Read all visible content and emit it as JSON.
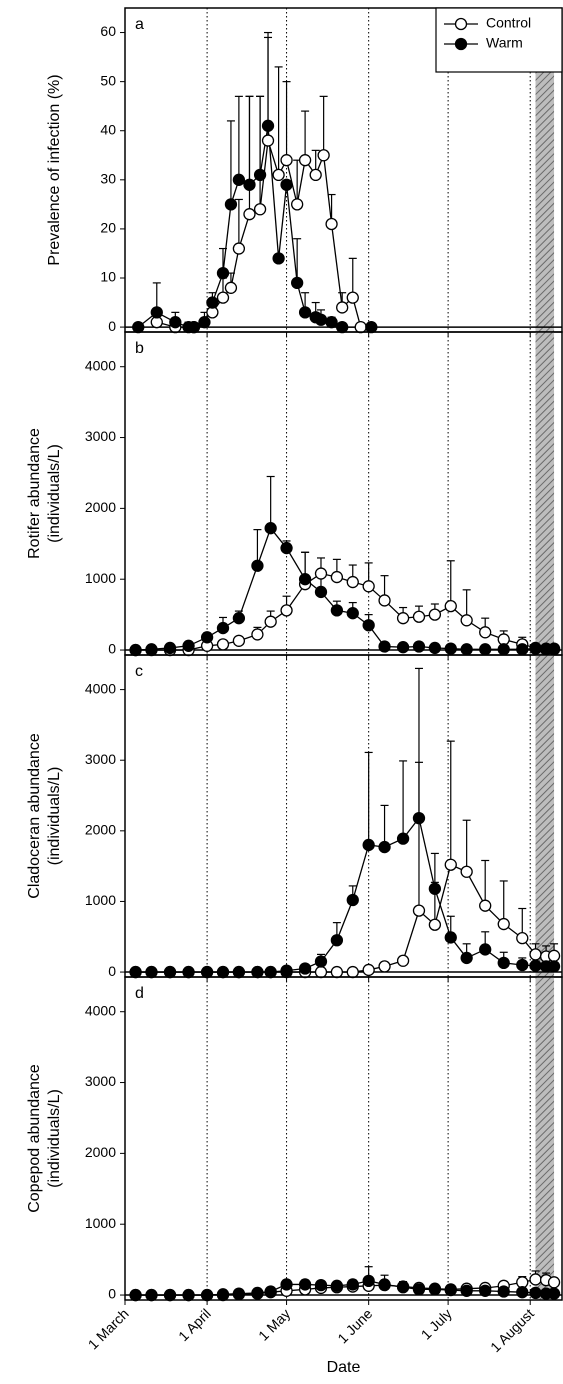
{
  "chart_data": [
    {
      "type": "line",
      "label": "a",
      "ylabel": [
        "Prevalence of infection (%)"
      ],
      "xlim": [
        0,
        165
      ],
      "xticks": [
        0,
        31,
        61,
        92,
        122,
        153
      ],
      "grid_x": "dotted",
      "ylim": [
        -1,
        65
      ],
      "yticks": [
        0,
        10,
        20,
        30,
        40,
        50,
        60
      ],
      "shade": [
        155,
        162
      ],
      "legend": "upper right",
      "series": [
        {
          "name": "Control",
          "color": "#000000",
          "marker_fill": "#ffffff",
          "x": [
            12,
            19,
            26,
            33,
            37,
            40,
            43,
            47,
            51,
            54,
            58,
            61,
            65,
            68,
            72,
            75,
            78,
            82,
            86,
            89
          ],
          "values": [
            1,
            0,
            0,
            3,
            6,
            8,
            16,
            23,
            24,
            38,
            31,
            34,
            25,
            34,
            31,
            35,
            21,
            4,
            6,
            0
          ],
          "errors": [
            0,
            0,
            0,
            2,
            4,
            3,
            10,
            24,
            23,
            21,
            22,
            16,
            9,
            10,
            5,
            12,
            6,
            3,
            8,
            0
          ]
        },
        {
          "name": "Warm",
          "color": "#000000",
          "marker_fill": "#000000",
          "x": [
            5,
            12,
            19,
            24,
            26,
            30,
            33,
            37,
            40,
            43,
            47,
            51,
            54,
            58,
            61,
            65,
            68,
            72,
            74,
            78,
            82,
            93
          ],
          "values": [
            0,
            3,
            1,
            0,
            0,
            1,
            5,
            11,
            25,
            30,
            29,
            31,
            41,
            14,
            29,
            9,
            3,
            2,
            1.5,
            1,
            0,
            0
          ],
          "errors": [
            0,
            6,
            2,
            1,
            0,
            2,
            2,
            5,
            17,
            17,
            18,
            16,
            19,
            0,
            0,
            9,
            4,
            3,
            2,
            1,
            0,
            0
          ]
        }
      ]
    },
    {
      "type": "line",
      "label": "b",
      "ylabel": [
        "Rotifer abundance",
        "(individuals/L)"
      ],
      "x": [
        4,
        10,
        17,
        24,
        31,
        37,
        43,
        50,
        55,
        61,
        68,
        74,
        80,
        86,
        92,
        98,
        105,
        111,
        117,
        123,
        129,
        136,
        143,
        150,
        155,
        159,
        162
      ],
      "xlim": [
        0,
        165
      ],
      "xticks": [
        0,
        31,
        61,
        92,
        122,
        153
      ],
      "grid_x": "dotted",
      "ylim": [
        -70,
        4490
      ],
      "yticks": [
        0,
        1000,
        2000,
        3000,
        4000
      ],
      "shade": [
        155,
        162
      ],
      "series": [
        {
          "color": "#000000",
          "marker_fill": "#ffffff",
          "values": [
            0,
            0,
            0,
            0,
            60,
            80,
            130,
            220,
            400,
            560,
            930,
            1080,
            1030,
            960,
            900,
            700,
            450,
            470,
            500,
            620,
            420,
            250,
            150,
            80,
            30,
            20,
            20
          ],
          "errors": [
            0,
            0,
            0,
            0,
            20,
            40,
            60,
            100,
            150,
            200,
            450,
            220,
            250,
            240,
            330,
            350,
            150,
            150,
            150,
            640,
            430,
            200,
            120,
            100,
            40,
            30,
            20
          ]
        },
        {
          "color": "#000000",
          "marker_fill": "#000000",
          "values": [
            0,
            10,
            30,
            60,
            180,
            310,
            450,
            1190,
            1720,
            1440,
            1000,
            820,
            560,
            520,
            350,
            50,
            40,
            50,
            30,
            20,
            10,
            10,
            10,
            10,
            20,
            10,
            10
          ],
          "errors": [
            0,
            10,
            20,
            30,
            60,
            150,
            100,
            510,
            730,
            100,
            380,
            250,
            130,
            150,
            150,
            30,
            20,
            20,
            10,
            10,
            10,
            10,
            10,
            10,
            10,
            10,
            10
          ]
        }
      ]
    },
    {
      "type": "line",
      "label": "c",
      "ylabel": [
        "Cladoceran abundance",
        "(individuals/L)"
      ],
      "x": [
        4,
        10,
        17,
        24,
        31,
        37,
        43,
        50,
        55,
        61,
        68,
        74,
        80,
        86,
        92,
        98,
        105,
        111,
        117,
        123,
        129,
        136,
        143,
        150,
        155,
        159,
        162
      ],
      "xlim": [
        0,
        165
      ],
      "xticks": [
        0,
        31,
        61,
        92,
        122,
        153
      ],
      "grid_x": "dotted",
      "ylim": [
        -70,
        4490
      ],
      "yticks": [
        0,
        1000,
        2000,
        3000,
        4000
      ],
      "shade": [
        155,
        162
      ],
      "series": [
        {
          "color": "#000000",
          "marker_fill": "#ffffff",
          "values": [
            0,
            0,
            0,
            0,
            0,
            0,
            0,
            0,
            0,
            0,
            0,
            0,
            0,
            0,
            30,
            80,
            160,
            870,
            670,
            1520,
            1420,
            940,
            680,
            480,
            250,
            220,
            230
          ],
          "errors": [
            0,
            0,
            0,
            0,
            0,
            0,
            0,
            0,
            0,
            0,
            0,
            0,
            0,
            0,
            20,
            40,
            60,
            2100,
            600,
            1750,
            730,
            640,
            610,
            420,
            150,
            150,
            170
          ]
        },
        {
          "color": "#000000",
          "marker_fill": "#000000",
          "values": [
            0,
            0,
            0,
            0,
            0,
            0,
            0,
            0,
            0,
            20,
            50,
            150,
            450,
            1020,
            1800,
            1770,
            1890,
            2180,
            1180,
            490,
            200,
            320,
            130,
            100,
            90,
            80,
            80
          ],
          "errors": [
            0,
            0,
            0,
            0,
            0,
            0,
            0,
            0,
            0,
            20,
            40,
            100,
            250,
            200,
            1310,
            590,
            1100,
            2120,
            500,
            300,
            200,
            250,
            150,
            100,
            60,
            50,
            50
          ]
        }
      ]
    },
    {
      "type": "line",
      "label": "d",
      "ylabel": [
        "Copepod abundance",
        "(individuals/L)"
      ],
      "xlabel": "Date",
      "x": [
        4,
        10,
        17,
        24,
        31,
        37,
        43,
        50,
        55,
        61,
        68,
        74,
        80,
        86,
        92,
        98,
        105,
        111,
        117,
        123,
        129,
        136,
        143,
        150,
        155,
        159,
        162
      ],
      "xlim": [
        0,
        165
      ],
      "xticks": [
        {
          "value": 0,
          "label": "1 March"
        },
        {
          "value": 31,
          "label": "1 April"
        },
        {
          "value": 61,
          "label": "1 May"
        },
        {
          "value": 92,
          "label": "1 June"
        },
        {
          "value": 122,
          "label": "1 July"
        },
        {
          "value": 153,
          "label": "1 August"
        }
      ],
      "grid_x": "dotted",
      "ylim": [
        -70,
        4490
      ],
      "yticks": [
        0,
        1000,
        2000,
        3000,
        4000
      ],
      "shade": [
        155,
        162
      ],
      "series": [
        {
          "color": "#000000",
          "marker_fill": "#ffffff",
          "values": [
            0,
            0,
            0,
            0,
            0,
            0,
            10,
            20,
            40,
            60,
            80,
            100,
            110,
            120,
            130,
            140,
            120,
            100,
            90,
            80,
            90,
            100,
            130,
            180,
            220,
            210,
            180
          ],
          "errors": [
            0,
            0,
            0,
            0,
            0,
            0,
            10,
            20,
            30,
            40,
            40,
            40,
            40,
            40,
            50,
            60,
            50,
            40,
            40,
            40,
            40,
            50,
            60,
            80,
            120,
            100,
            60
          ]
        },
        {
          "color": "#000000",
          "marker_fill": "#000000",
          "values": [
            0,
            0,
            0,
            0,
            0,
            10,
            20,
            30,
            50,
            150,
            150,
            140,
            130,
            150,
            200,
            150,
            110,
            80,
            80,
            70,
            60,
            60,
            50,
            40,
            30,
            20,
            20
          ],
          "errors": [
            0,
            0,
            0,
            0,
            0,
            10,
            20,
            30,
            40,
            60,
            60,
            50,
            50,
            60,
            200,
            130,
            80,
            40,
            40,
            30,
            30,
            30,
            30,
            20,
            20,
            10,
            10
          ]
        }
      ]
    }
  ]
}
